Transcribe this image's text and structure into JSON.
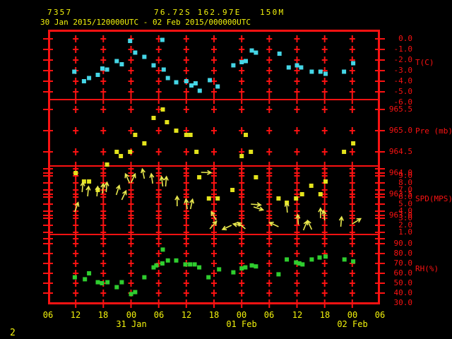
{
  "header": {
    "station_id": "7357",
    "location": "76.72S 162.97E   150M",
    "period": "30 Jan 2015/120000UTC - 02 Feb 2015/000000UTC"
  },
  "footer": {
    "page_number": "2"
  },
  "colors": {
    "background": "#000000",
    "grid_red": "#fb1212",
    "label_red": "#fb1212",
    "text_yellow": "#f2f20c",
    "temperature_points": "#45d6e6",
    "pressure_points": "#e3e31c",
    "wind_arrows": "#e8e84d",
    "humidity_points": "#2fcd2f"
  },
  "x_axis": {
    "hour_labels": [
      "06",
      "12",
      "18",
      "00",
      "06",
      "12",
      "18",
      "00",
      "06",
      "12",
      "18",
      "00",
      "06"
    ],
    "hour_step": 6,
    "date_labels": [
      {
        "label": "31 Jan",
        "hour": 18
      },
      {
        "label": "01 Feb",
        "hour": 42
      },
      {
        "label": "02 Feb",
        "hour": 66
      }
    ]
  },
  "chart_data": [
    {
      "type": "scatter",
      "key": "temp",
      "title": "T(C)",
      "color_key": "temperature_points",
      "ylim": [
        -6,
        0
      ],
      "y_tick_labels": [
        "0.0",
        "-1.0",
        "-2.0",
        "-3.0",
        "-4.0",
        "-5.0",
        "-6.0"
      ],
      "y_tick_values": [
        0,
        -1,
        -2,
        -3,
        -4,
        -5,
        -6
      ],
      "grid_values": [
        0,
        -1,
        -2,
        -3,
        -4,
        -5
      ],
      "x_unit": "hours from 30 Jan 2015 06UTC",
      "points": [
        [
          5.7,
          -3.1
        ],
        [
          7.8,
          -4.0
        ],
        [
          8.9,
          -3.7
        ],
        [
          10.8,
          -3.4
        ],
        [
          11.8,
          -2.8
        ],
        [
          12.8,
          -2.9
        ],
        [
          14.9,
          -2.1
        ],
        [
          16.0,
          -2.4
        ],
        [
          17.8,
          -0.2
        ],
        [
          18.9,
          -1.3
        ],
        [
          20.9,
          -1.7
        ],
        [
          22.9,
          -2.5
        ],
        [
          24.8,
          -0.1
        ],
        [
          25.1,
          -2.9
        ],
        [
          26.0,
          -3.7
        ],
        [
          27.8,
          -4.1
        ],
        [
          30.0,
          -4.0
        ],
        [
          31.1,
          -4.4
        ],
        [
          32.0,
          -4.2
        ],
        [
          32.9,
          -4.9
        ],
        [
          35.1,
          -3.9
        ],
        [
          36.8,
          -4.5
        ],
        [
          40.2,
          -2.5
        ],
        [
          42.0,
          -2.2
        ],
        [
          42.9,
          -2.1
        ],
        [
          44.2,
          -1.1
        ],
        [
          45.1,
          -1.3
        ],
        [
          50.2,
          -1.4
        ],
        [
          52.2,
          -2.7
        ],
        [
          54.0,
          -2.5
        ],
        [
          54.9,
          -2.7
        ],
        [
          57.2,
          -3.1
        ],
        [
          59.1,
          -3.1
        ],
        [
          60.2,
          -3.3
        ],
        [
          64.2,
          -3.1
        ],
        [
          66.2,
          -2.3
        ]
      ]
    },
    {
      "type": "scatter",
      "key": "pres",
      "title": "Pre (mb)",
      "color_key": "pressure_points",
      "ylim": [
        963.0,
        965.5
      ],
      "y_tick_labels": [
        "965.5",
        "965.0",
        "964.5",
        "964.0",
        "963.5",
        "963.0"
      ],
      "y_tick_values": [
        965.5,
        965.0,
        964.5,
        964.0,
        963.5,
        963.0
      ],
      "grid_values": [
        965.5,
        965.0,
        964.5,
        964.0,
        963.5,
        963.0
      ],
      "x_unit": "hours from 30 Jan 2015 06UTC",
      "points": [
        [
          6.0,
          964.0
        ],
        [
          7.8,
          963.8
        ],
        [
          8.9,
          963.8
        ],
        [
          10.8,
          963.6
        ],
        [
          12.8,
          964.2
        ],
        [
          14.9,
          964.5
        ],
        [
          15.8,
          964.4
        ],
        [
          17.8,
          964.5
        ],
        [
          18.9,
          964.9
        ],
        [
          20.9,
          964.7
        ],
        [
          22.9,
          965.3
        ],
        [
          24.9,
          965.5
        ],
        [
          25.8,
          965.2
        ],
        [
          27.8,
          965.0
        ],
        [
          30.0,
          964.9
        ],
        [
          30.9,
          964.9
        ],
        [
          32.2,
          964.5
        ],
        [
          32.8,
          963.9
        ],
        [
          34.9,
          963.4
        ],
        [
          36.8,
          963.4
        ],
        [
          40.0,
          963.6
        ],
        [
          42.0,
          964.4
        ],
        [
          42.9,
          964.9
        ],
        [
          44.0,
          964.5
        ],
        [
          45.1,
          963.9
        ],
        [
          50.0,
          963.4
        ],
        [
          51.8,
          963.3
        ],
        [
          53.8,
          963.4
        ],
        [
          55.1,
          963.5
        ],
        [
          57.1,
          963.7
        ],
        [
          59.1,
          963.5
        ],
        [
          60.2,
          963.8
        ],
        [
          64.2,
          964.5
        ],
        [
          66.2,
          964.7
        ]
      ]
    },
    {
      "type": "wind_vectors",
      "key": "wind",
      "title": "SPD(MPS)",
      "color_key": "wind_arrows",
      "ylim": [
        1,
        10
      ],
      "y_tick_labels": [
        "9.0",
        "8.0",
        "7.0",
        "6.0",
        "5.0",
        "4.0",
        "3.0",
        "2.0",
        "1.0"
      ],
      "y_tick_values": [
        9,
        8,
        7,
        6,
        5,
        4,
        3,
        2,
        1
      ],
      "grid_values": [
        10,
        9,
        8,
        7,
        6,
        5,
        4,
        3,
        2,
        1
      ],
      "x_unit": "hours from 30 Jan 2015 06UTC",
      "angle_convention": "degrees, 0 = up, clockwise positive",
      "arrows": [
        [
          5.8,
          3.9,
          20
        ],
        [
          7.4,
          6.7,
          5
        ],
        [
          8.6,
          6.1,
          5
        ],
        [
          10.6,
          6.1,
          5
        ],
        [
          11.8,
          6.5,
          5
        ],
        [
          12.6,
          6.7,
          5
        ],
        [
          14.8,
          6.3,
          18
        ],
        [
          16.0,
          5.6,
          25
        ],
        [
          17.7,
          8.0,
          -25
        ],
        [
          18.0,
          8.0,
          25
        ],
        [
          20.9,
          8.6,
          -12
        ],
        [
          22.7,
          7.9,
          -8
        ],
        [
          24.9,
          7.5,
          -8
        ],
        [
          25.5,
          7.5,
          5
        ],
        [
          28.0,
          4.7,
          0
        ],
        [
          30.2,
          4.3,
          -8
        ],
        [
          30.9,
          4.3,
          12
        ],
        [
          33.2,
          9.5,
          92
        ],
        [
          35.1,
          1.5,
          42
        ],
        [
          36.5,
          2.7,
          -30
        ],
        [
          39.8,
          2.0,
          -115
        ],
        [
          42.3,
          1.9,
          -78
        ],
        [
          42.8,
          1.5,
          -50
        ],
        [
          44.0,
          5.0,
          95
        ],
        [
          44.6,
          4.6,
          108
        ],
        [
          50.0,
          1.8,
          -65
        ],
        [
          51.9,
          3.8,
          -4
        ],
        [
          54.3,
          2.1,
          -4
        ],
        [
          55.4,
          1.3,
          22
        ],
        [
          57.2,
          1.4,
          -25
        ],
        [
          59.1,
          3.0,
          0
        ],
        [
          60.0,
          2.7,
          -6
        ],
        [
          63.5,
          1.8,
          5
        ],
        [
          66.0,
          2.2,
          58
        ]
      ]
    },
    {
      "type": "scatter",
      "key": "rh",
      "title": "RH(%)",
      "color_key": "humidity_points",
      "ylim": [
        30,
        95
      ],
      "y_tick_labels": [
        "90.0",
        "80.0",
        "70.0",
        "60.0",
        "50.0",
        "40.0",
        "30.0"
      ],
      "y_tick_values": [
        90,
        80,
        70,
        60,
        50,
        40,
        30
      ],
      "grid_values": [
        95,
        90,
        80,
        70,
        60,
        50,
        40
      ],
      "x_unit": "hours from 30 Jan 2015 06UTC",
      "points": [
        [
          5.8,
          56
        ],
        [
          8.0,
          54
        ],
        [
          8.9,
          60
        ],
        [
          10.8,
          51
        ],
        [
          11.7,
          50
        ],
        [
          12.9,
          51
        ],
        [
          14.9,
          46
        ],
        [
          16.0,
          51
        ],
        [
          18.0,
          39
        ],
        [
          18.9,
          41
        ],
        [
          20.9,
          56
        ],
        [
          22.9,
          66
        ],
        [
          23.5,
          68
        ],
        [
          24.8,
          70
        ],
        [
          24.9,
          84
        ],
        [
          26.0,
          73
        ],
        [
          27.8,
          73
        ],
        [
          29.8,
          69
        ],
        [
          30.8,
          69
        ],
        [
          31.8,
          69
        ],
        [
          32.8,
          66
        ],
        [
          34.8,
          56
        ],
        [
          37.1,
          64
        ],
        [
          40.2,
          61
        ],
        [
          42.0,
          65
        ],
        [
          42.8,
          66
        ],
        [
          44.2,
          68
        ],
        [
          45.1,
          67
        ],
        [
          50.0,
          59
        ],
        [
          51.8,
          74
        ],
        [
          53.8,
          71
        ],
        [
          54.5,
          70
        ],
        [
          55.2,
          69
        ],
        [
          57.2,
          74
        ],
        [
          58.9,
          76
        ],
        [
          60.2,
          77
        ],
        [
          64.3,
          74
        ],
        [
          66.2,
          72
        ]
      ]
    }
  ]
}
